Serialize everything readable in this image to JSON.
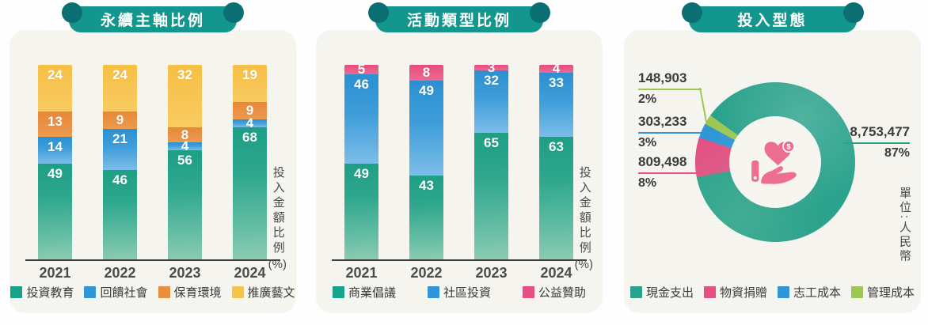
{
  "panels": [
    {
      "title": "永續主軸比例",
      "ylabel": "投入金額比例",
      "ylabel_unit": "(%)",
      "years": [
        "2021",
        "2022",
        "2023",
        "2024"
      ],
      "series": [
        {
          "name": "投資教育",
          "color": "#17a28c",
          "values": [
            49,
            46,
            56,
            68
          ]
        },
        {
          "name": "回饋社會",
          "color": "#3096d6",
          "values": [
            14,
            21,
            4,
            4
          ]
        },
        {
          "name": "保育環境",
          "color": "#e98e3b",
          "values": [
            13,
            9,
            8,
            9
          ]
        },
        {
          "name": "推廣藝文",
          "color": "#f7c44a",
          "values": [
            24,
            24,
            32,
            19
          ]
        }
      ]
    },
    {
      "title": "活動類型比例",
      "ylabel": "投入金額比例",
      "ylabel_unit": "(%)",
      "years": [
        "2021",
        "2022",
        "2023",
        "2024"
      ],
      "series": [
        {
          "name": "商業倡議",
          "color": "#17a28c",
          "values": [
            49,
            43,
            65,
            63
          ]
        },
        {
          "name": "社區投資",
          "color": "#3096d6",
          "values": [
            46,
            49,
            32,
            33
          ]
        },
        {
          "name": "公益贊助",
          "color": "#e64f83",
          "values": [
            5,
            8,
            3,
            4
          ]
        }
      ]
    },
    {
      "title": "投入型態",
      "unit_label": "單位:人民幣",
      "slices": [
        {
          "name": "現金支出",
          "color": "#2aa28c",
          "amount": "8,753,477",
          "percent": "87%"
        },
        {
          "name": "物資捐贈",
          "color": "#e64f83",
          "amount": "809,498",
          "percent": "8%"
        },
        {
          "name": "志工成本",
          "color": "#3096d6",
          "amount": "303,233",
          "percent": "3%"
        },
        {
          "name": "管理成本",
          "color": "#9cc751",
          "amount": "148,903",
          "percent": "2%"
        }
      ]
    }
  ],
  "chart_data": [
    {
      "type": "bar",
      "stacked": true,
      "title": "永續主軸比例",
      "categories": [
        "2021",
        "2022",
        "2023",
        "2024"
      ],
      "series": [
        {
          "name": "投資教育",
          "values": [
            49,
            46,
            56,
            68
          ]
        },
        {
          "name": "回饋社會",
          "values": [
            14,
            21,
            4,
            4
          ]
        },
        {
          "name": "保育環境",
          "values": [
            13,
            9,
            8,
            9
          ]
        },
        {
          "name": "推廣藝文",
          "values": [
            24,
            24,
            32,
            19
          ]
        }
      ],
      "xlabel": "",
      "ylabel": "投入金額比例(%)",
      "ylim": [
        0,
        100
      ],
      "grid": false,
      "legend_position": "bottom"
    },
    {
      "type": "bar",
      "stacked": true,
      "title": "活動類型比例",
      "categories": [
        "2021",
        "2022",
        "2023",
        "2024"
      ],
      "series": [
        {
          "name": "商業倡議",
          "values": [
            49,
            43,
            65,
            63
          ]
        },
        {
          "name": "社區投資",
          "values": [
            46,
            49,
            32,
            33
          ]
        },
        {
          "name": "公益贊助",
          "values": [
            5,
            8,
            3,
            4
          ]
        }
      ],
      "xlabel": "",
      "ylabel": "投入金額比例(%)",
      "ylim": [
        0,
        100
      ],
      "grid": false,
      "legend_position": "bottom"
    },
    {
      "type": "pie",
      "donut": true,
      "title": "投入型態",
      "labels": [
        "現金支出",
        "物資捐贈",
        "志工成本",
        "管理成本"
      ],
      "values": [
        8753477,
        809498,
        303233,
        148903
      ],
      "percents": [
        87,
        8,
        3,
        2
      ],
      "unit": "單位:人民幣",
      "legend_position": "bottom"
    }
  ]
}
